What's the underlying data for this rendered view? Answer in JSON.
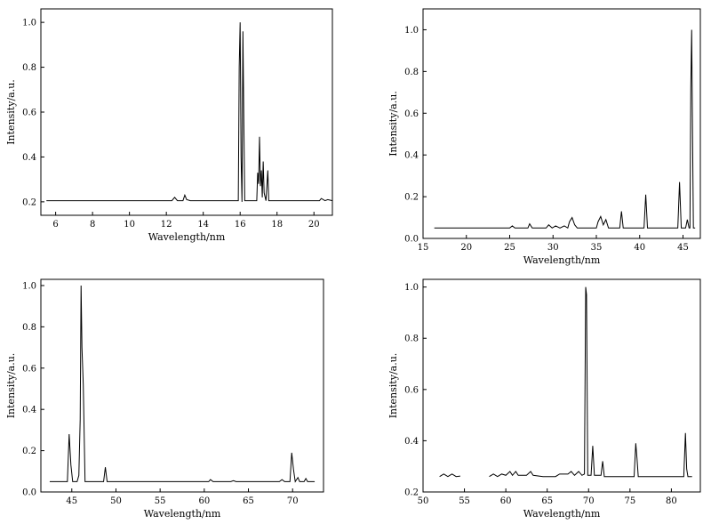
{
  "chart_data": [
    {
      "type": "line",
      "xlabel": "Wavelength/nm",
      "ylabel": "Intensity/a.u.",
      "xlim": [
        5.2,
        21.0
      ],
      "ylim": [
        0.14,
        1.06
      ],
      "xticks": [
        6,
        8,
        10,
        12,
        14,
        16,
        18,
        20
      ],
      "yticks": [
        0.2,
        0.4,
        0.6,
        0.8,
        1.0
      ],
      "ytick_labels": [
        "0.2",
        "0.4",
        "0.6",
        "0.8",
        "1.0"
      ],
      "grid": false,
      "baseline": 0.205,
      "series": [
        {
          "values": [
            [
              5.5,
              0.205
            ],
            [
              12.3,
              0.205
            ],
            [
              12.45,
              0.22
            ],
            [
              12.6,
              0.205
            ],
            [
              12.9,
              0.205
            ],
            [
              13.0,
              0.23
            ],
            [
              13.1,
              0.21
            ],
            [
              13.3,
              0.205
            ],
            [
              15.9,
              0.205
            ],
            [
              15.95,
              0.8
            ],
            [
              16.0,
              1.0
            ],
            [
              16.05,
              0.4
            ],
            [
              16.1,
              0.2
            ],
            [
              16.15,
              0.96
            ],
            [
              16.2,
              0.56
            ],
            [
              16.25,
              0.205
            ],
            [
              16.9,
              0.205
            ],
            [
              16.95,
              0.33
            ],
            [
              17.0,
              0.28
            ],
            [
              17.05,
              0.49
            ],
            [
              17.1,
              0.27
            ],
            [
              17.15,
              0.34
            ],
            [
              17.2,
              0.22
            ],
            [
              17.25,
              0.38
            ],
            [
              17.3,
              0.24
            ],
            [
              17.4,
              0.205
            ],
            [
              17.5,
              0.34
            ],
            [
              17.55,
              0.205
            ],
            [
              20.3,
              0.205
            ],
            [
              20.4,
              0.215
            ],
            [
              20.6,
              0.205
            ],
            [
              20.75,
              0.21
            ],
            [
              21.0,
              0.205
            ]
          ]
        }
      ]
    },
    {
      "type": "line",
      "xlabel": "Wavelength/nm",
      "ylabel": "Intensity/a.u.",
      "xlim": [
        15.0,
        47.0
      ],
      "ylim": [
        0.0,
        1.1
      ],
      "xticks": [
        15,
        20,
        25,
        30,
        35,
        40,
        45
      ],
      "yticks": [
        0.0,
        0.2,
        0.4,
        0.6,
        0.8,
        1.0
      ],
      "ytick_labels": [
        "0.0",
        "0.2",
        "0.4",
        "0.6",
        "0.8",
        "1.0"
      ],
      "grid": false,
      "baseline": 0.05,
      "series": [
        {
          "values": [
            [
              16.3,
              0.05
            ],
            [
              25.0,
              0.05
            ],
            [
              25.3,
              0.06
            ],
            [
              25.6,
              0.05
            ],
            [
              27.1,
              0.05
            ],
            [
              27.3,
              0.07
            ],
            [
              27.6,
              0.05
            ],
            [
              29.2,
              0.05
            ],
            [
              29.5,
              0.065
            ],
            [
              29.9,
              0.05
            ],
            [
              30.3,
              0.06
            ],
            [
              30.8,
              0.05
            ],
            [
              31.3,
              0.06
            ],
            [
              31.7,
              0.05
            ],
            [
              31.9,
              0.08
            ],
            [
              32.2,
              0.1
            ],
            [
              32.5,
              0.065
            ],
            [
              32.8,
              0.05
            ],
            [
              35.0,
              0.05
            ],
            [
              35.2,
              0.08
            ],
            [
              35.5,
              0.105
            ],
            [
              35.8,
              0.065
            ],
            [
              36.1,
              0.09
            ],
            [
              36.4,
              0.05
            ],
            [
              37.7,
              0.05
            ],
            [
              37.9,
              0.13
            ],
            [
              38.1,
              0.05
            ],
            [
              40.5,
              0.05
            ],
            [
              40.7,
              0.21
            ],
            [
              40.9,
              0.05
            ],
            [
              44.4,
              0.05
            ],
            [
              44.6,
              0.27
            ],
            [
              44.8,
              0.05
            ],
            [
              45.3,
              0.05
            ],
            [
              45.5,
              0.09
            ],
            [
              45.7,
              0.05
            ],
            [
              45.8,
              0.05
            ],
            [
              45.9,
              0.72
            ],
            [
              46.0,
              1.0
            ],
            [
              46.1,
              0.5
            ],
            [
              46.2,
              0.05
            ],
            [
              46.4,
              0.05
            ]
          ]
        }
      ]
    },
    {
      "type": "line",
      "xlabel": "Wavelength/nm",
      "ylabel": "Intensity/a.u.",
      "xlim": [
        41.5,
        73.5
      ],
      "ylim": [
        0.0,
        1.03
      ],
      "xticks": [
        45,
        50,
        55,
        60,
        65,
        70
      ],
      "yticks": [
        0.0,
        0.2,
        0.4,
        0.6,
        0.8,
        1.0
      ],
      "ytick_labels": [
        "0.0",
        "0.2",
        "0.4",
        "0.6",
        "0.8",
        "1.0"
      ],
      "grid": false,
      "baseline": 0.05,
      "series": [
        {
          "values": [
            [
              42.5,
              0.05
            ],
            [
              44.5,
              0.05
            ],
            [
              44.7,
              0.28
            ],
            [
              44.9,
              0.13
            ],
            [
              45.1,
              0.05
            ],
            [
              45.6,
              0.05
            ],
            [
              45.8,
              0.08
            ],
            [
              45.95,
              0.35
            ],
            [
              46.05,
              1.0
            ],
            [
              46.15,
              0.7
            ],
            [
              46.3,
              0.52
            ],
            [
              46.5,
              0.05
            ],
            [
              48.6,
              0.05
            ],
            [
              48.8,
              0.12
            ],
            [
              49.0,
              0.05
            ],
            [
              60.5,
              0.05
            ],
            [
              60.7,
              0.06
            ],
            [
              61.0,
              0.05
            ],
            [
              63.0,
              0.05
            ],
            [
              63.3,
              0.055
            ],
            [
              63.6,
              0.05
            ],
            [
              68.5,
              0.05
            ],
            [
              68.8,
              0.06
            ],
            [
              69.1,
              0.05
            ],
            [
              69.7,
              0.05
            ],
            [
              69.9,
              0.19
            ],
            [
              70.1,
              0.11
            ],
            [
              70.3,
              0.05
            ],
            [
              70.6,
              0.07
            ],
            [
              70.8,
              0.05
            ],
            [
              71.3,
              0.05
            ],
            [
              71.5,
              0.065
            ],
            [
              71.7,
              0.05
            ],
            [
              72.5,
              0.05
            ]
          ]
        }
      ]
    },
    {
      "type": "line",
      "xlabel": "Wavelength/nm",
      "ylabel": "Intensity/a.u.",
      "xlim": [
        50.0,
        83.5
      ],
      "ylim": [
        0.2,
        1.03
      ],
      "xticks": [
        50,
        55,
        60,
        65,
        70,
        75,
        80
      ],
      "yticks": [
        0.2,
        0.4,
        0.6,
        0.8,
        1.0
      ],
      "ytick_labels": [
        "0.2",
        "0.4",
        "0.6",
        "0.8",
        "1.0"
      ],
      "grid": false,
      "baseline": 0.26,
      "series": [
        {
          "values": [
            [
              52.0,
              0.26
            ],
            [
              52.5,
              0.27
            ],
            [
              53.0,
              0.26
            ],
            [
              53.5,
              0.27
            ],
            [
              54.0,
              0.26
            ],
            [
              54.5,
              0.262
            ]
          ]
        },
        {
          "values": [
            [
              58.0,
              0.26
            ],
            [
              58.5,
              0.27
            ],
            [
              59.0,
              0.26
            ],
            [
              59.5,
              0.27
            ],
            [
              60.0,
              0.265
            ],
            [
              60.5,
              0.28
            ],
            [
              60.8,
              0.265
            ],
            [
              61.2,
              0.28
            ],
            [
              61.5,
              0.265
            ],
            [
              62.5,
              0.265
            ],
            [
              63.0,
              0.28
            ],
            [
              63.3,
              0.265
            ],
            [
              64.5,
              0.26
            ],
            [
              66.0,
              0.26
            ],
            [
              66.5,
              0.27
            ],
            [
              67.5,
              0.27
            ],
            [
              67.9,
              0.28
            ],
            [
              68.3,
              0.265
            ],
            [
              68.8,
              0.28
            ],
            [
              69.2,
              0.265
            ],
            [
              69.5,
              0.27
            ],
            [
              69.65,
              1.0
            ],
            [
              69.75,
              0.97
            ],
            [
              69.9,
              0.265
            ],
            [
              70.3,
              0.265
            ],
            [
              70.5,
              0.38
            ],
            [
              70.7,
              0.265
            ],
            [
              71.5,
              0.265
            ],
            [
              71.7,
              0.32
            ],
            [
              71.9,
              0.26
            ],
            [
              72.5,
              0.26
            ],
            [
              75.5,
              0.26
            ],
            [
              75.7,
              0.39
            ],
            [
              75.85,
              0.33
            ],
            [
              76.0,
              0.26
            ],
            [
              81.5,
              0.26
            ],
            [
              81.7,
              0.43
            ],
            [
              81.85,
              0.29
            ],
            [
              82.0,
              0.26
            ],
            [
              82.5,
              0.26
            ]
          ]
        }
      ]
    }
  ]
}
